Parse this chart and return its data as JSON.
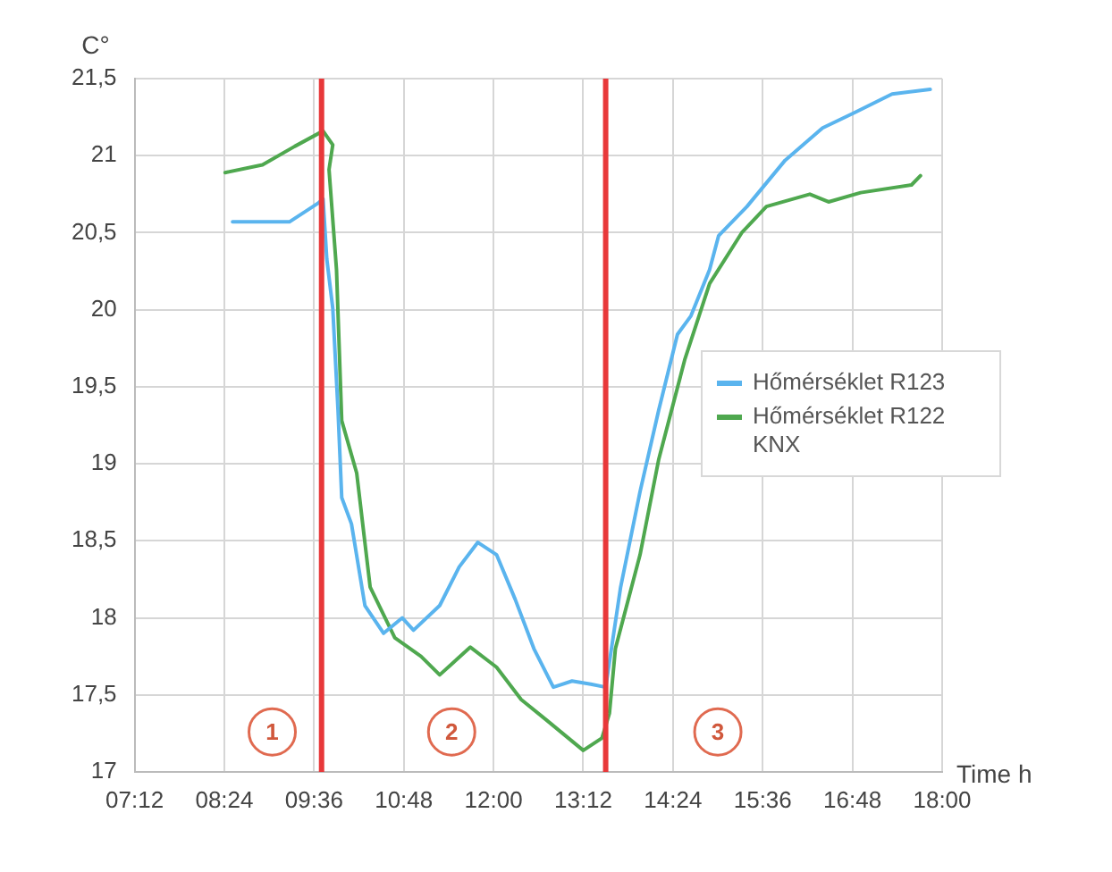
{
  "chart_data": {
    "type": "line",
    "xlabel": "Time h",
    "ylabel": "C°",
    "xlim": [
      7.2,
      18
    ],
    "xticks": [
      {
        "value": 7.2,
        "label": "07:12"
      },
      {
        "value": 8.4,
        "label": "08:24"
      },
      {
        "value": 9.6,
        "label": "09:36"
      },
      {
        "value": 10.8,
        "label": "10:48"
      },
      {
        "value": 12,
        "label": "12:00"
      },
      {
        "value": 13.2,
        "label": "13:12"
      },
      {
        "value": 14.4,
        "label": "14:24"
      },
      {
        "value": 15.6,
        "label": "15:36"
      },
      {
        "value": 16.8,
        "label": "16:48"
      },
      {
        "value": 18,
        "label": "18:00"
      }
    ],
    "ylim": [
      17,
      21.5
    ],
    "yticks": [
      17,
      {
        "value": 17.5,
        "label": "17,5"
      },
      18,
      {
        "value": 18.5,
        "label": "18,5"
      },
      19,
      {
        "value": 19.5,
        "label": "19,5"
      },
      20,
      {
        "value": 20.5,
        "label": "20,5"
      },
      21,
      {
        "value": 21.5,
        "label": "21,5"
      }
    ],
    "grid": true,
    "legend": "right",
    "marker": "none",
    "line_style": "solid",
    "series": [
      {
        "name": "Hőmérséklet R123",
        "color": "#5ab4ee",
        "x": [
          8.51,
          9.27,
          9.65,
          9.72,
          9.77,
          9.85,
          9.92,
          9.97,
          10.1,
          10.28,
          10.53,
          10.78,
          10.93,
          11.28,
          11.54,
          11.79,
          12.04,
          12.29,
          12.54,
          12.8,
          13.05,
          13.3,
          13.5,
          13.7,
          13.96,
          14.21,
          14.46,
          14.64,
          14.89,
          15.01,
          15.39,
          15.9,
          16.4,
          16.83,
          17.33,
          17.84
        ],
        "values": [
          20.57,
          20.57,
          20.69,
          20.72,
          20.33,
          20.01,
          19.35,
          18.78,
          18.61,
          18.08,
          17.9,
          18.0,
          17.92,
          18.08,
          18.33,
          18.49,
          18.41,
          18.12,
          17.8,
          17.55,
          17.59,
          17.57,
          17.55,
          18.2,
          18.82,
          19.35,
          19.84,
          19.96,
          20.26,
          20.48,
          20.67,
          20.97,
          21.18,
          21.28,
          21.4,
          21.43
        ]
      },
      {
        "name": "Hőmérséklet R122 KNX",
        "color": "#4fa84f",
        "x": [
          8.41,
          8.91,
          9.34,
          9.72,
          9.85,
          9.8,
          9.9,
          9.97,
          10.17,
          10.35,
          10.68,
          11.03,
          11.28,
          11.69,
          12.04,
          12.37,
          12.7,
          13.2,
          13.45,
          13.55,
          13.63,
          13.96,
          14.21,
          14.56,
          14.89,
          15.32,
          15.65,
          16.23,
          16.48,
          16.91,
          17.59,
          17.71
        ],
        "values": [
          20.89,
          20.94,
          21.06,
          21.16,
          21.07,
          20.91,
          20.26,
          19.28,
          18.94,
          18.2,
          17.87,
          17.75,
          17.63,
          17.81,
          17.68,
          17.47,
          17.34,
          17.14,
          17.22,
          17.38,
          17.8,
          18.41,
          19.03,
          19.68,
          20.17,
          20.5,
          20.67,
          20.75,
          20.7,
          20.76,
          20.81,
          20.87
        ]
      }
    ],
    "ref_lines": [
      {
        "axis": "x",
        "value": 9.7,
        "color": "#e8383a"
      },
      {
        "axis": "x",
        "value": 13.5,
        "color": "#e8383a"
      }
    ],
    "annotations": [
      {
        "text": "1",
        "x": 9.04,
        "y": 17.26
      },
      {
        "text": "2",
        "x": 11.44,
        "y": 17.26
      },
      {
        "text": "3",
        "x": 15.0,
        "y": 17.26
      }
    ]
  }
}
